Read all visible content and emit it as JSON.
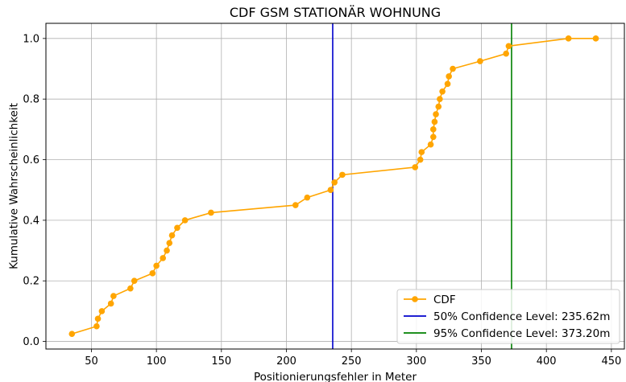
{
  "chart_data": {
    "type": "line",
    "title": "CDF GSM STATIONÄR WOHNUNG",
    "xlabel": "Positionierungsfehler in Meter",
    "ylabel": "Kumulative Wahrscheinlichkeit",
    "xlim": [
      15,
      460
    ],
    "ylim": [
      -0.025,
      1.05
    ],
    "xticks": [
      50,
      100,
      150,
      200,
      250,
      300,
      350,
      400,
      450
    ],
    "yticks": [
      0.0,
      0.2,
      0.4,
      0.6,
      0.8,
      1.0
    ],
    "grid": true,
    "legend_position": "lower-right",
    "series": [
      {
        "name": "CDF",
        "color": "#ffa500",
        "marker": "circle",
        "x": [
          35,
          54,
          55,
          58,
          65,
          67,
          80,
          83,
          97,
          100,
          105,
          108,
          110,
          112,
          116,
          122,
          142,
          207,
          216,
          234,
          237,
          243,
          299,
          303,
          304,
          311,
          313,
          313,
          314,
          315,
          317,
          318,
          320,
          324,
          325,
          328,
          349,
          369,
          371,
          417,
          438
        ],
        "y": [
          0.025,
          0.05,
          0.075,
          0.1,
          0.125,
          0.15,
          0.175,
          0.2,
          0.225,
          0.25,
          0.275,
          0.3,
          0.325,
          0.35,
          0.375,
          0.4,
          0.425,
          0.45,
          0.475,
          0.5,
          0.525,
          0.55,
          0.575,
          0.6,
          0.625,
          0.65,
          0.675,
          0.7,
          0.725,
          0.75,
          0.775,
          0.8,
          0.825,
          0.85,
          0.875,
          0.9,
          0.925,
          0.95,
          0.975,
          1.0,
          1.0
        ]
      }
    ],
    "vlines": [
      {
        "name": "50% Confidence Level: 235.62m",
        "x": 235.62,
        "color": "#0000cc"
      },
      {
        "name": "95% Confidence Level: 373.20m",
        "x": 373.2,
        "color": "#008000"
      }
    ]
  }
}
